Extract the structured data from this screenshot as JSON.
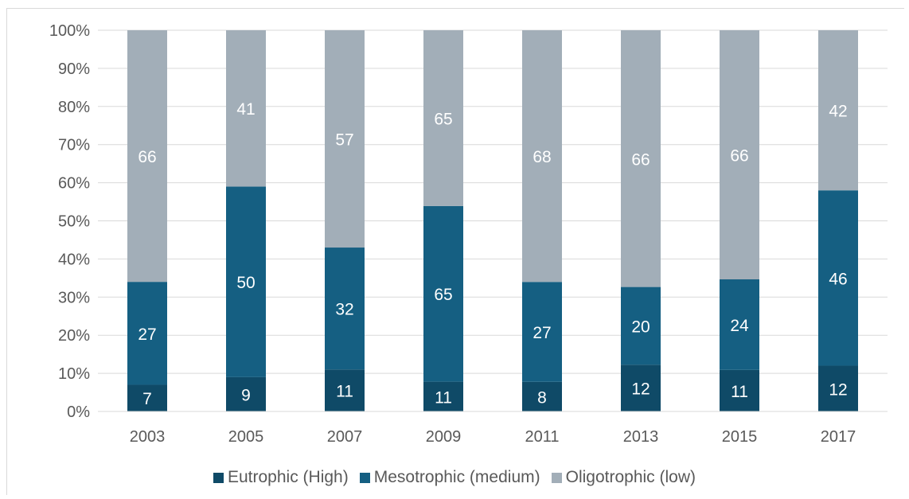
{
  "chart_data": {
    "type": "bar",
    "stacked": "percent",
    "categories": [
      "2003",
      "2005",
      "2007",
      "2009",
      "2011",
      "2013",
      "2015",
      "2017"
    ],
    "series": [
      {
        "name": "Eutrophic (High)",
        "color": "#0f4a67",
        "values": [
          7,
          9,
          11,
          11,
          8,
          12,
          11,
          12
        ]
      },
      {
        "name": "Mesotrophic (medium)",
        "color": "#155f82",
        "values": [
          27,
          50,
          32,
          65,
          27,
          20,
          24,
          46
        ]
      },
      {
        "name": "Oligotrophic (low)",
        "color": "#a2aeb8",
        "values": [
          66,
          41,
          57,
          65,
          68,
          66,
          66,
          42
        ]
      }
    ],
    "ylim": [
      0,
      100
    ],
    "yticks": [
      "0%",
      "10%",
      "20%",
      "30%",
      "40%",
      "50%",
      "60%",
      "70%",
      "80%",
      "90%",
      "100%"
    ],
    "grid": true,
    "legend_position": "bottom"
  }
}
